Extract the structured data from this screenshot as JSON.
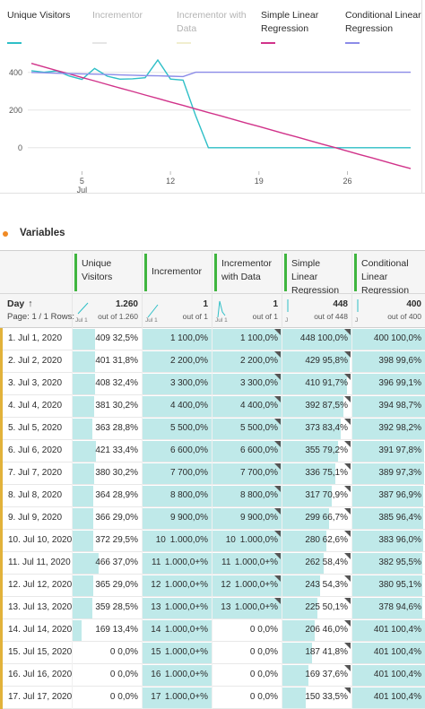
{
  "legend": [
    {
      "label": "Unique Visitors",
      "color": "#2ebfc7",
      "dim": false
    },
    {
      "label": "Incrementor",
      "color": "#e6e6e6",
      "dim": true
    },
    {
      "label": "Incrementor with Data",
      "color": "#f1eecf",
      "dim": true
    },
    {
      "label": "Simple Linear Regression",
      "color": "#d1338a",
      "dim": false
    },
    {
      "label": "Conditional Linear Regression",
      "color": "#8c8ce8",
      "dim": false
    }
  ],
  "chart_data": {
    "type": "line",
    "x": [
      1,
      2,
      3,
      4,
      5,
      6,
      7,
      8,
      9,
      10,
      11,
      12,
      13,
      14,
      15,
      16,
      17,
      18,
      19,
      20,
      21,
      22,
      23,
      24,
      25,
      26,
      27,
      28,
      29,
      30,
      31
    ],
    "y_ticks": [
      "0",
      "200",
      "400"
    ],
    "x_ticks": [
      {
        "value": 5,
        "label": "5",
        "sub": "Jul"
      },
      {
        "value": 12,
        "label": "12",
        "sub": ""
      },
      {
        "value": 19,
        "label": "19",
        "sub": ""
      },
      {
        "value": 26,
        "label": "26",
        "sub": ""
      }
    ],
    "ylim": [
      -120,
      480
    ],
    "xlim": [
      1,
      31
    ],
    "grid": true,
    "series": [
      {
        "name": "Unique Visitors",
        "color": "#2ebfc7",
        "values": [
          409,
          401,
          408,
          381,
          363,
          421,
          380,
          364,
          366,
          372,
          466,
          365,
          359,
          169,
          0,
          0,
          0,
          0,
          0,
          0,
          0,
          0,
          0,
          0,
          0,
          0,
          0,
          0,
          0,
          0,
          0
        ]
      },
      {
        "name": "Simple Linear Regression",
        "color": "#d1338a",
        "values": [
          448,
          429,
          410,
          392,
          373,
          355,
          336,
          317,
          299,
          280,
          262,
          243,
          225,
          206,
          187,
          169,
          150,
          131,
          113,
          94,
          75,
          57,
          38,
          19,
          1,
          -18,
          -37,
          -55,
          -74,
          -93,
          -111
        ]
      },
      {
        "name": "Conditional Linear Regression",
        "color": "#8c8ce8",
        "values": [
          400,
          398,
          396,
          394,
          392,
          391,
          389,
          387,
          385,
          383,
          382,
          380,
          378,
          401,
          401,
          401,
          401,
          401,
          401,
          401,
          401,
          401,
          401,
          401,
          401,
          401,
          401,
          401,
          401,
          401,
          401
        ]
      }
    ]
  },
  "variables_title": "Variables",
  "table": {
    "columns": [
      {
        "label": "Unique Visitors",
        "total": "1.260",
        "out_of": "out of 1.260",
        "spark_label": "Jul 1"
      },
      {
        "label": "Incrementor",
        "total": "1",
        "out_of": "out of 1",
        "spark_label": "Jul 1"
      },
      {
        "label": "Incrementor with Data",
        "total": "1",
        "out_of": "out of 1",
        "spark_label": "Jul 1"
      },
      {
        "label": "Simple Linear Regression",
        "total": "448",
        "out_of": "out of 448",
        "spark_label": "J"
      },
      {
        "label": "Conditional Linear Regression",
        "total": "400",
        "out_of": "out of 400",
        "spark_label": "J"
      }
    ],
    "day_header": "Day",
    "sort_arrow": "↑",
    "page_info": "Page: 1 / 1 Rows:",
    "rows": [
      {
        "day": "1. Jul 1, 2020",
        "c": [
          [
            "409",
            "32,5%",
            0.325
          ],
          [
            "1",
            "100,0%",
            1.0
          ],
          [
            "1",
            "100,0%",
            1.0
          ],
          [
            "448",
            "100,0%",
            1.0
          ],
          [
            "400",
            "100,0%",
            1.0
          ]
        ]
      },
      {
        "day": "2. Jul 2, 2020",
        "c": [
          [
            "401",
            "31,8%",
            0.318
          ],
          [
            "2",
            "200,0%",
            1.0
          ],
          [
            "2",
            "200,0%",
            1.0
          ],
          [
            "429",
            "95,8%",
            0.958
          ],
          [
            "398",
            "99,6%",
            0.996
          ]
        ]
      },
      {
        "day": "3. Jul 3, 2020",
        "c": [
          [
            "408",
            "32,4%",
            0.324
          ],
          [
            "3",
            "300,0%",
            1.0
          ],
          [
            "3",
            "300,0%",
            1.0
          ],
          [
            "410",
            "91,7%",
            0.917
          ],
          [
            "396",
            "99,1%",
            0.991
          ]
        ]
      },
      {
        "day": "4. Jul 4, 2020",
        "c": [
          [
            "381",
            "30,2%",
            0.302
          ],
          [
            "4",
            "400,0%",
            1.0
          ],
          [
            "4",
            "400,0%",
            1.0
          ],
          [
            "392",
            "87,5%",
            0.875
          ],
          [
            "394",
            "98,7%",
            0.987
          ]
        ]
      },
      {
        "day": "5. Jul 5, 2020",
        "c": [
          [
            "363",
            "28,8%",
            0.288
          ],
          [
            "5",
            "500,0%",
            1.0
          ],
          [
            "5",
            "500,0%",
            1.0
          ],
          [
            "373",
            "83,4%",
            0.834
          ],
          [
            "392",
            "98,2%",
            0.982
          ]
        ]
      },
      {
        "day": "6. Jul 6, 2020",
        "c": [
          [
            "421",
            "33,4%",
            0.334
          ],
          [
            "6",
            "600,0%",
            1.0
          ],
          [
            "6",
            "600,0%",
            1.0
          ],
          [
            "355",
            "79,2%",
            0.792
          ],
          [
            "391",
            "97,8%",
            0.978
          ]
        ]
      },
      {
        "day": "7. Jul 7, 2020",
        "c": [
          [
            "380",
            "30,2%",
            0.302
          ],
          [
            "7",
            "700,0%",
            1.0
          ],
          [
            "7",
            "700,0%",
            1.0
          ],
          [
            "336",
            "75,1%",
            0.751
          ],
          [
            "389",
            "97,3%",
            0.973
          ]
        ]
      },
      {
        "day": "8. Jul 8, 2020",
        "c": [
          [
            "364",
            "28,9%",
            0.289
          ],
          [
            "8",
            "800,0%",
            1.0
          ],
          [
            "8",
            "800,0%",
            1.0
          ],
          [
            "317",
            "70,9%",
            0.709
          ],
          [
            "387",
            "96,9%",
            0.969
          ]
        ]
      },
      {
        "day": "9. Jul 9, 2020",
        "c": [
          [
            "366",
            "29,0%",
            0.29
          ],
          [
            "9",
            "900,0%",
            1.0
          ],
          [
            "9",
            "900,0%",
            1.0
          ],
          [
            "299",
            "66,7%",
            0.667
          ],
          [
            "385",
            "96,4%",
            0.964
          ]
        ]
      },
      {
        "day": "10. Jul 10, 2020",
        "c": [
          [
            "372",
            "29,5%",
            0.295
          ],
          [
            "10",
            "1.000,0%",
            1.0
          ],
          [
            "10",
            "1.000,0%",
            1.0
          ],
          [
            "280",
            "62,6%",
            0.626
          ],
          [
            "383",
            "96,0%",
            0.96
          ]
        ]
      },
      {
        "day": "11. Jul 11, 2020",
        "c": [
          [
            "466",
            "37,0%",
            0.37
          ],
          [
            "11",
            "1.000,0+%",
            1.0
          ],
          [
            "11",
            "1.000,0+%",
            1.0
          ],
          [
            "262",
            "58,4%",
            0.584
          ],
          [
            "382",
            "95,5%",
            0.955
          ]
        ]
      },
      {
        "day": "12. Jul 12, 2020",
        "c": [
          [
            "365",
            "29,0%",
            0.29
          ],
          [
            "12",
            "1.000,0+%",
            1.0
          ],
          [
            "12",
            "1.000,0+%",
            1.0
          ],
          [
            "243",
            "54,3%",
            0.543
          ],
          [
            "380",
            "95,1%",
            0.951
          ]
        ]
      },
      {
        "day": "13. Jul 13, 2020",
        "c": [
          [
            "359",
            "28,5%",
            0.285
          ],
          [
            "13",
            "1.000,0+%",
            1.0
          ],
          [
            "13",
            "1.000,0+%",
            1.0
          ],
          [
            "225",
            "50,1%",
            0.501
          ],
          [
            "378",
            "94,6%",
            0.946
          ]
        ]
      },
      {
        "day": "14. Jul 14, 2020",
        "c": [
          [
            "169",
            "13,4%",
            0.134
          ],
          [
            "14",
            "1.000,0+%",
            1.0
          ],
          [
            "0",
            "0,0%",
            0.0
          ],
          [
            "206",
            "46,0%",
            0.46
          ],
          [
            "401",
            "100,4%",
            1.0
          ]
        ]
      },
      {
        "day": "15. Jul 15, 2020",
        "c": [
          [
            "0",
            "0,0%",
            0.0
          ],
          [
            "15",
            "1.000,0+%",
            1.0
          ],
          [
            "0",
            "0,0%",
            0.0
          ],
          [
            "187",
            "41,8%",
            0.418
          ],
          [
            "401",
            "100,4%",
            1.0
          ]
        ]
      },
      {
        "day": "16. Jul 16, 2020",
        "c": [
          [
            "0",
            "0,0%",
            0.0
          ],
          [
            "16",
            "1.000,0+%",
            1.0
          ],
          [
            "0",
            "0,0%",
            0.0
          ],
          [
            "169",
            "37,6%",
            0.376
          ],
          [
            "401",
            "100,4%",
            1.0
          ]
        ]
      },
      {
        "day": "17. Jul 17, 2020",
        "c": [
          [
            "0",
            "0,0%",
            0.0
          ],
          [
            "17",
            "1.000,0+%",
            1.0
          ],
          [
            "0",
            "0,0%",
            0.0
          ],
          [
            "150",
            "33,5%",
            0.335
          ],
          [
            "401",
            "100,4%",
            1.0
          ]
        ]
      }
    ]
  }
}
